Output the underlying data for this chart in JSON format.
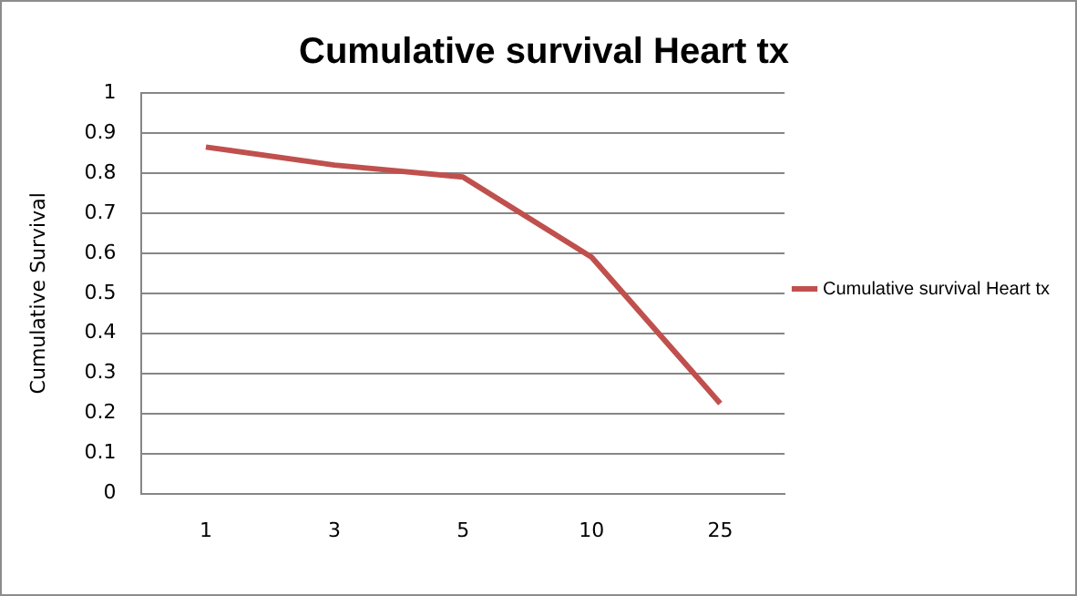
{
  "chart_data": {
    "type": "line",
    "title": "Cumulative survival Heart tx",
    "ylabel": "Cumulative Survival",
    "categories": [
      "1",
      "3",
      "5",
      "10",
      "25"
    ],
    "series": [
      {
        "name": "Cumulative survival Heart tx",
        "color": "#c0504d",
        "values": [
          0.865,
          0.82,
          0.79,
          0.59,
          0.225
        ]
      }
    ],
    "ylim": [
      0,
      1
    ],
    "yticks": [
      0,
      0.1,
      0.2,
      0.3,
      0.4,
      0.5,
      0.6,
      0.7,
      0.8,
      0.9,
      1
    ],
    "grid": "y",
    "legend": "right",
    "marker": "none",
    "line_style": "solid"
  }
}
